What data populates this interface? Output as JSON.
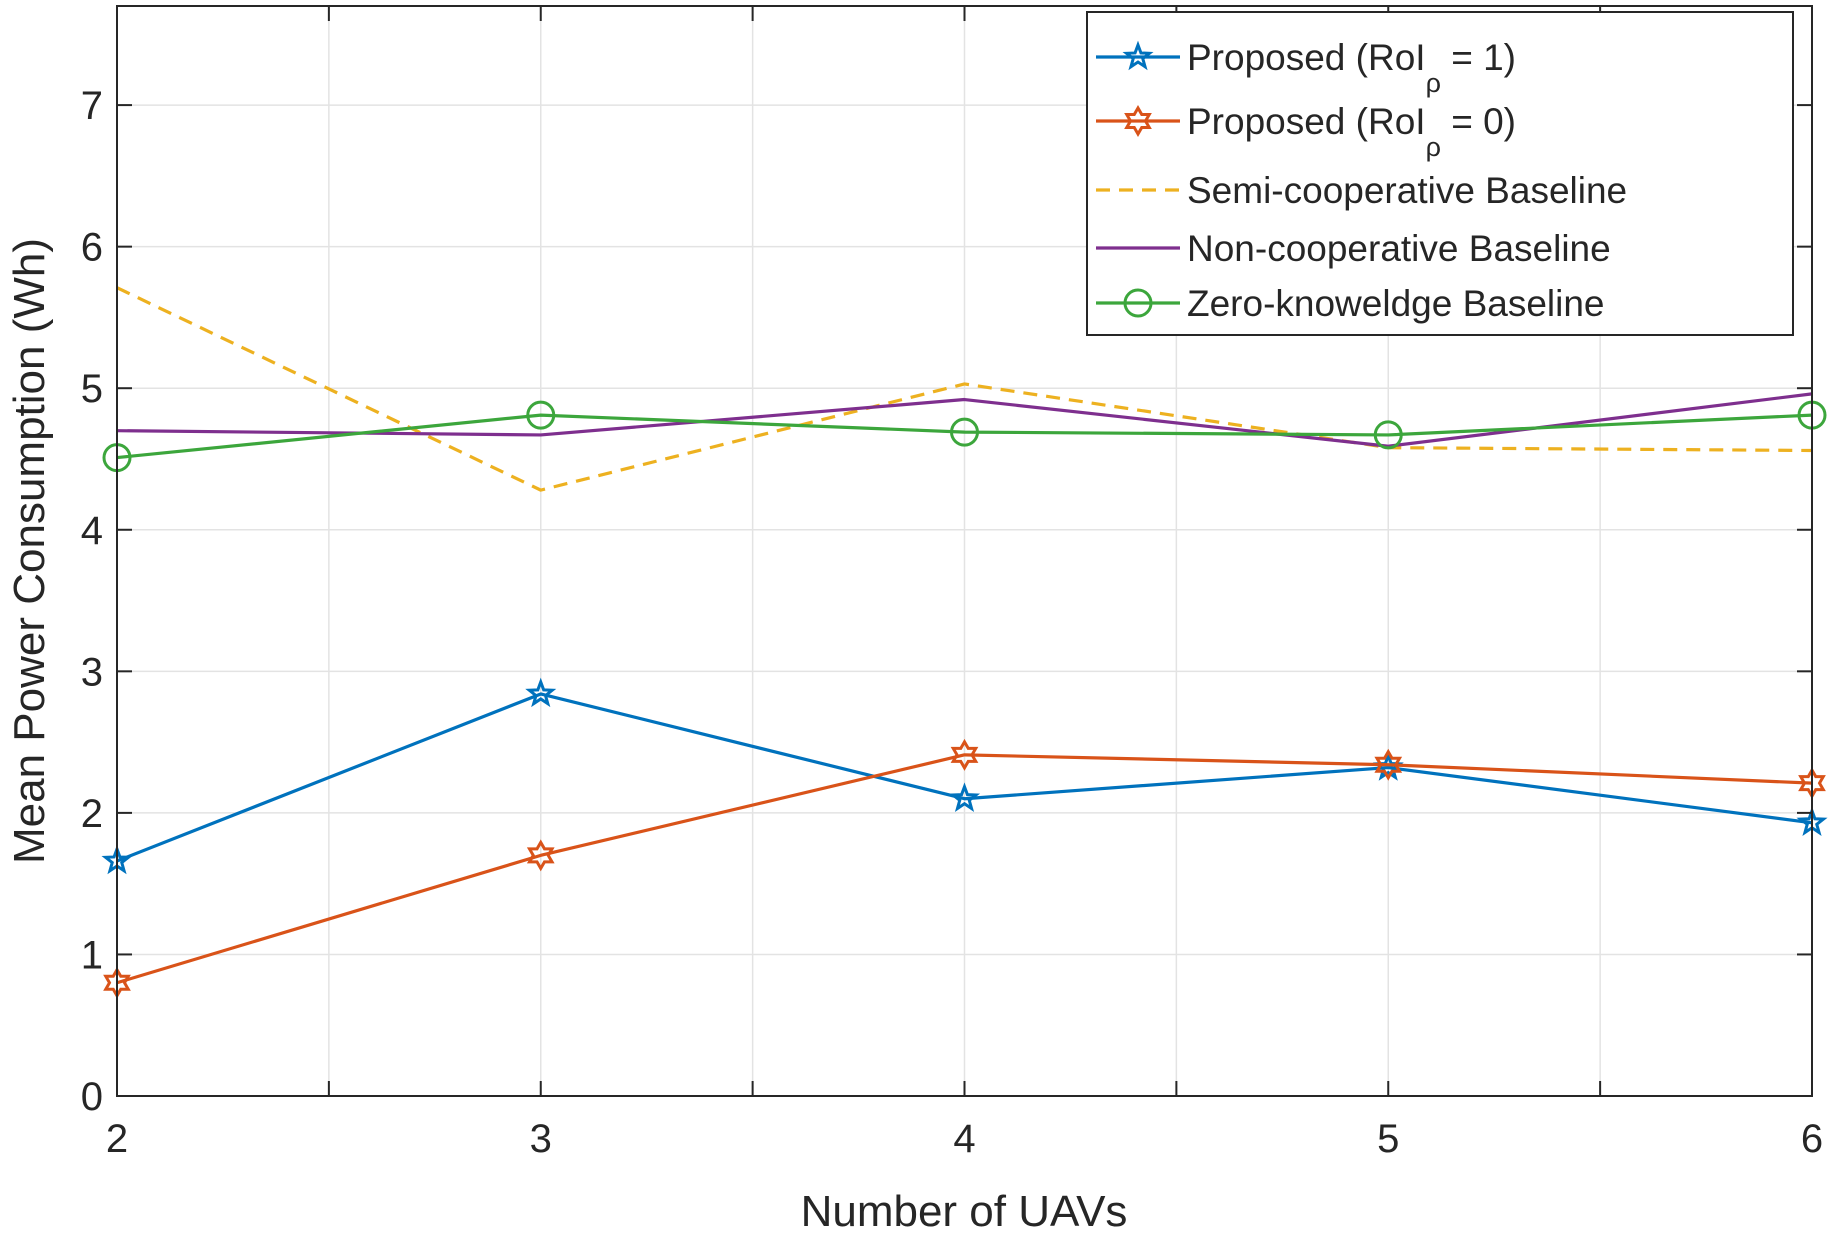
{
  "chart_data": {
    "type": "line",
    "xlabel": "Number of UAVs",
    "ylabel": "Mean Power Consumption (Wh)",
    "x": [
      2,
      3,
      4,
      5,
      6
    ],
    "xlim": [
      2,
      6
    ],
    "ylim": [
      0,
      7.7
    ],
    "xticks": [
      "2",
      "3",
      "4",
      "5",
      "6"
    ],
    "yticks": [
      "0",
      "1",
      "2",
      "3",
      "4",
      "5",
      "6",
      "7"
    ],
    "grid": true,
    "legend_position": "top-right",
    "series": [
      {
        "name": "Proposed (RoI_ρ = 1)",
        "legend_text": "Proposed (RoI",
        "legend_sub": "ρ",
        "legend_tail": " = 1)",
        "color": "#0072BD",
        "style": "solid",
        "marker": "pentagram",
        "values": [
          1.66,
          2.84,
          2.1,
          2.32,
          1.93
        ]
      },
      {
        "name": "Proposed (RoI_ρ = 0)",
        "legend_text": "Proposed (RoI",
        "legend_sub": "ρ",
        "legend_tail": " = 0)",
        "color": "#D95319",
        "style": "solid",
        "marker": "hexagram",
        "values": [
          0.8,
          1.7,
          2.41,
          2.34,
          2.21
        ]
      },
      {
        "name": "Semi-cooperative Baseline",
        "legend_text": "Semi-cooperative Baseline",
        "color": "#EDB120",
        "style": "dashed",
        "marker": "none",
        "values": [
          5.71,
          4.28,
          5.03,
          4.58,
          4.56
        ]
      },
      {
        "name": "Non-cooperative Baseline",
        "legend_text": "Non-cooperative Baseline",
        "color": "#7E2F8E",
        "style": "solid",
        "marker": "none",
        "values": [
          4.7,
          4.67,
          4.92,
          4.59,
          4.96
        ]
      },
      {
        "name": "Zero-knoweldge Baseline",
        "legend_text": "Zero-knoweldge Baseline",
        "color": "#3CA63C",
        "style": "solid",
        "marker": "circle",
        "values": [
          4.51,
          4.81,
          4.69,
          4.67,
          4.81
        ]
      }
    ]
  }
}
